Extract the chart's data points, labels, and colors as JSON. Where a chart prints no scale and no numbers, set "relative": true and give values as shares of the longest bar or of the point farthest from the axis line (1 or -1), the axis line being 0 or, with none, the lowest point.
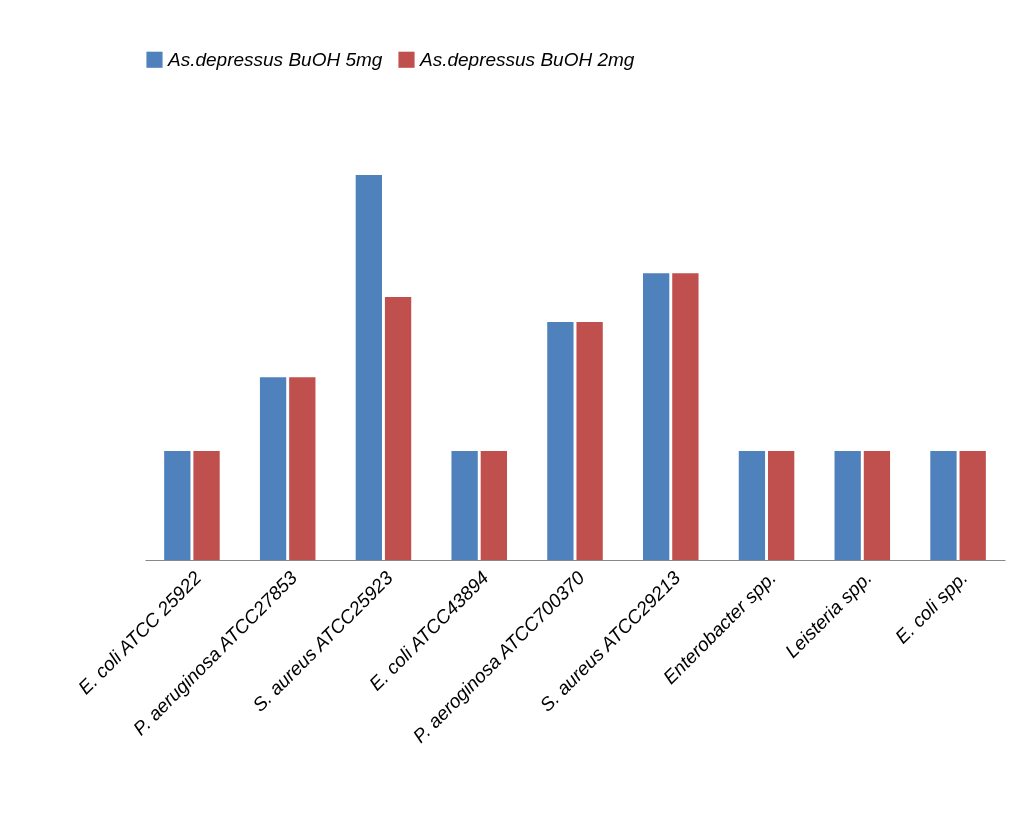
{
  "chart_data": {
    "type": "bar",
    "relative": true,
    "legend": "top",
    "categories": [
      "E. coli ATCC 25922",
      "P. aeruginosa ATCC27853",
      "S. aureus ATCC25923",
      "E. coli ATCC43894",
      "P. aeroginosa ATCC700370",
      "S. aureus ATCC29213",
      "Enterobacter spp.",
      "Leisteria spp.",
      "E. coli spp."
    ],
    "series": [
      {
        "name": "As.depressus BuOH 5mg",
        "color": "#4f81bd",
        "values": [
          0.283,
          0.475,
          1,
          0.283,
          0.618,
          0.745,
          0.283,
          0.283,
          0.283
        ]
      },
      {
        "name": "As.depressus BuOH 2mg",
        "color": "#c0504d",
        "values": [
          0.283,
          0.475,
          0.683,
          0.283,
          0.618,
          0.745,
          0.283,
          0.283,
          0.283
        ]
      }
    ]
  }
}
